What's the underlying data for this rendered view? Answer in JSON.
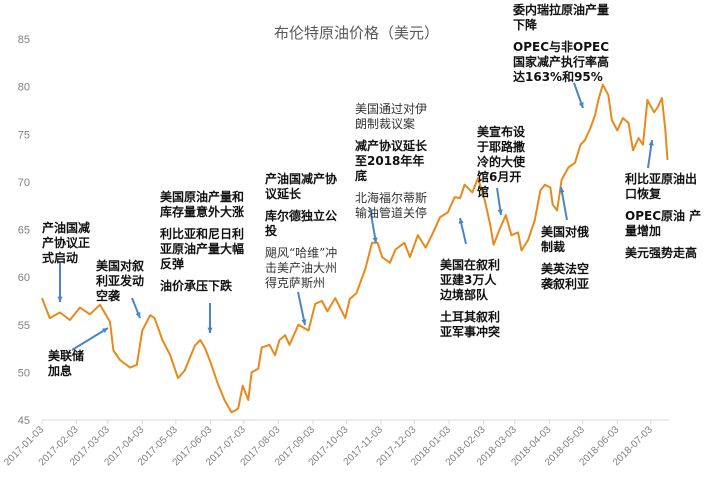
{
  "chart_data": {
    "type": "line",
    "title": "布伦特原油价格（美元）",
    "xlabel": "",
    "ylabel": "",
    "ylim": [
      45,
      85
    ],
    "yticks": [
      "45",
      "50",
      "55",
      "60",
      "65",
      "70",
      "75",
      "80",
      "85"
    ],
    "xticks": [
      "2017-01-03",
      "2017-02-03",
      "2017-03-03",
      "2017-04-03",
      "2017-05-03",
      "2017-06-03",
      "2017-07-03",
      "2017-08-03",
      "2017-09-03",
      "2017-10-03",
      "2017-11-03",
      "2017-12-03",
      "2018-01-03",
      "2018-02-03",
      "2018-03-03",
      "2018-04-03",
      "2018-05-03",
      "2018-06-03",
      "2018-07-03"
    ],
    "xlim": [
      "2017-01-03",
      "2018-07-18"
    ],
    "grid": false,
    "color": "#E8891B",
    "series": [
      {
        "name": "布伦特原油价格",
        "x": [
          "2017-01-03",
          "2017-01-10",
          "2017-01-19",
          "2017-01-28",
          "2017-02-06",
          "2017-02-15",
          "2017-02-24",
          "2017-03-05",
          "2017-03-08",
          "2017-03-14",
          "2017-03-23",
          "2017-03-29",
          "2017-04-03",
          "2017-04-10",
          "2017-04-14",
          "2017-04-21",
          "2017-04-28",
          "2017-05-05",
          "2017-05-11",
          "2017-05-20",
          "2017-05-25",
          "2017-05-29",
          "2017-06-03",
          "2017-06-10",
          "2017-06-16",
          "2017-06-22",
          "2017-06-28",
          "2017-07-02",
          "2017-07-07",
          "2017-07-10",
          "2017-07-16",
          "2017-07-19",
          "2017-07-26",
          "2017-07-31",
          "2017-08-04",
          "2017-08-09",
          "2017-08-13",
          "2017-08-21",
          "2017-08-30",
          "2017-09-05",
          "2017-09-11",
          "2017-09-16",
          "2017-09-23",
          "2017-10-02",
          "2017-10-06",
          "2017-10-12",
          "2017-10-20",
          "2017-10-26",
          "2017-10-31",
          "2017-11-04",
          "2017-11-11",
          "2017-11-16",
          "2017-11-24",
          "2017-11-29",
          "2017-12-06",
          "2017-12-13",
          "2017-12-19",
          "2017-12-26",
          "2018-01-02",
          "2018-01-08",
          "2018-01-13",
          "2018-01-17",
          "2018-01-24",
          "2018-01-29",
          "2018-02-04",
          "2018-02-09",
          "2018-02-12",
          "2018-02-18",
          "2018-02-23",
          "2018-02-28",
          "2018-03-06",
          "2018-03-09",
          "2018-03-15",
          "2018-03-21",
          "2018-03-26",
          "2018-03-30",
          "2018-04-04",
          "2018-04-06",
          "2018-04-10",
          "2018-04-14",
          "2018-04-20",
          "2018-04-26",
          "2018-05-01",
          "2018-05-05",
          "2018-05-10",
          "2018-05-14",
          "2018-05-17",
          "2018-05-21",
          "2018-05-26",
          "2018-05-29",
          "2018-06-03",
          "2018-06-08",
          "2018-06-13",
          "2018-06-17",
          "2018-06-22",
          "2018-06-26",
          "2018-06-30",
          "2018-07-06",
          "2018-07-09",
          "2018-07-13",
          "2018-07-16",
          "2018-07-18"
        ],
        "values": [
          57.8,
          55.7,
          56.3,
          55.5,
          56.8,
          56.1,
          57.1,
          55.3,
          52.3,
          51.3,
          50.5,
          50.8,
          54.4,
          56.0,
          55.7,
          53.4,
          51.8,
          49.4,
          50.2,
          52.8,
          53.4,
          52.6,
          51.1,
          48.7,
          47.0,
          45.8,
          46.2,
          48.6,
          47.1,
          50.0,
          50.4,
          52.6,
          52.9,
          51.8,
          53.4,
          53.9,
          52.9,
          55.0,
          54.4,
          57.2,
          57.5,
          56.4,
          57.8,
          55.7,
          57.7,
          58.3,
          60.9,
          63.6,
          63.6,
          62.1,
          61.5,
          62.9,
          63.6,
          62.1,
          64.4,
          63.1,
          64.5,
          66.3,
          66.8,
          68.4,
          68.3,
          69.7,
          68.9,
          70.4,
          68.1,
          65.5,
          63.4,
          65.2,
          66.5,
          64.4,
          64.7,
          62.8,
          63.9,
          66.0,
          69.1,
          69.7,
          69.4,
          67.6,
          67.0,
          70.2,
          71.5,
          72.0,
          73.9,
          74.4,
          75.7,
          77.0,
          78.6,
          80.2,
          79.1,
          76.5,
          75.4,
          76.7,
          76.2,
          73.3,
          74.6,
          73.9,
          78.6,
          77.3,
          77.8,
          78.8,
          75.5,
          72.3
        ]
      }
    ],
    "annotations": {
      "a1": [
        "产油国减产协议正式启动"
      ],
      "a2": [
        "美联储加息"
      ],
      "a3": [
        "美国对叙利亚发动空袭"
      ],
      "a4": [
        "美国原油产量和库存量意外大涨",
        "利比亚和尼日利亚原油产量大幅反弹",
        "油价承压下跌"
      ],
      "a5": [
        "产油国减产协议延长",
        "库尔德独立公投",
        "飓风“哈维”冲击美产油大州得克萨斯州"
      ],
      "a6": [
        "美国通过对伊朗制裁议案",
        "减产协议延长至2018年年底",
        "北海福尔蒂斯输油管道关停"
      ],
      "a7": [
        "美国在叙利亚建3万人边境部队",
        "土耳其叙利亚军事冲突"
      ],
      "a8": [
        "美宣布设于耶路撒冷的大使馆6月开馆"
      ],
      "a9": [
        "美国对俄制裁",
        "美英法空袭叙利亚"
      ],
      "a10": [
        "委内瑞拉原油产量下降",
        "OPEC与非OPEC国家减产执行率高达163%和95%"
      ],
      "a11": [
        "利比亚原油出口恢复",
        "OPEC原油 产量增加",
        "美元强势走高"
      ]
    },
    "arrow_color": "#4A86C5"
  }
}
